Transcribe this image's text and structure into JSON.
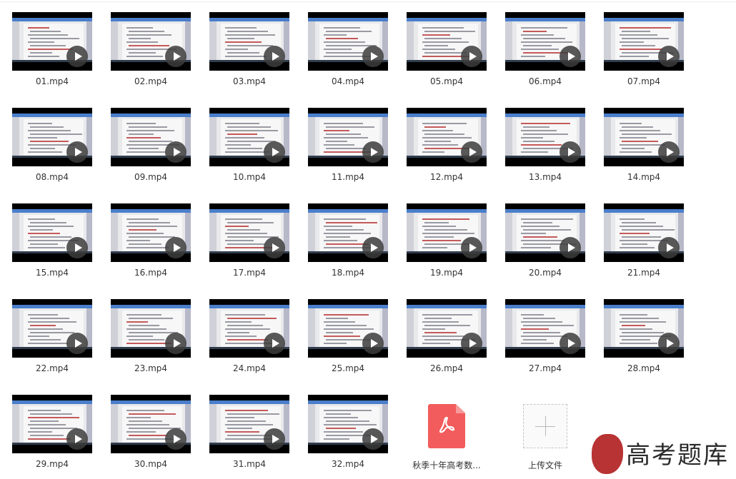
{
  "files": [
    {
      "name": "01.mp4",
      "type": "video"
    },
    {
      "name": "02.mp4",
      "type": "video"
    },
    {
      "name": "03.mp4",
      "type": "video"
    },
    {
      "name": "04.mp4",
      "type": "video"
    },
    {
      "name": "05.mp4",
      "type": "video"
    },
    {
      "name": "06.mp4",
      "type": "video"
    },
    {
      "name": "07.mp4",
      "type": "video"
    },
    {
      "name": "08.mp4",
      "type": "video"
    },
    {
      "name": "09.mp4",
      "type": "video"
    },
    {
      "name": "10.mp4",
      "type": "video"
    },
    {
      "name": "11.mp4",
      "type": "video"
    },
    {
      "name": "12.mp4",
      "type": "video"
    },
    {
      "name": "13.mp4",
      "type": "video"
    },
    {
      "name": "14.mp4",
      "type": "video"
    },
    {
      "name": "15.mp4",
      "type": "video"
    },
    {
      "name": "16.mp4",
      "type": "video"
    },
    {
      "name": "17.mp4",
      "type": "video"
    },
    {
      "name": "18.mp4",
      "type": "video"
    },
    {
      "name": "19.mp4",
      "type": "video"
    },
    {
      "name": "20.mp4",
      "type": "video"
    },
    {
      "name": "21.mp4",
      "type": "video"
    },
    {
      "name": "22.mp4",
      "type": "video"
    },
    {
      "name": "23.mp4",
      "type": "video"
    },
    {
      "name": "24.mp4",
      "type": "video"
    },
    {
      "name": "25.mp4",
      "type": "video"
    },
    {
      "name": "26.mp4",
      "type": "video"
    },
    {
      "name": "27.mp4",
      "type": "video"
    },
    {
      "name": "28.mp4",
      "type": "video"
    },
    {
      "name": "29.mp4",
      "type": "video"
    },
    {
      "name": "30.mp4",
      "type": "video"
    },
    {
      "name": "31.mp4",
      "type": "video"
    },
    {
      "name": "32.mp4",
      "type": "video"
    },
    {
      "name": "秋季十年高考数...",
      "type": "pdf"
    }
  ],
  "upload": {
    "label": "上传文件",
    "icon": "plus-icon"
  },
  "watermark": {
    "text": "高考题库"
  },
  "icons": {
    "video": "play-icon",
    "pdf": "pdf-file-icon"
  },
  "colors": {
    "pdf": "#f25c5c",
    "thumb_bg": "#000000",
    "title_bar": "#4a7ecb"
  }
}
